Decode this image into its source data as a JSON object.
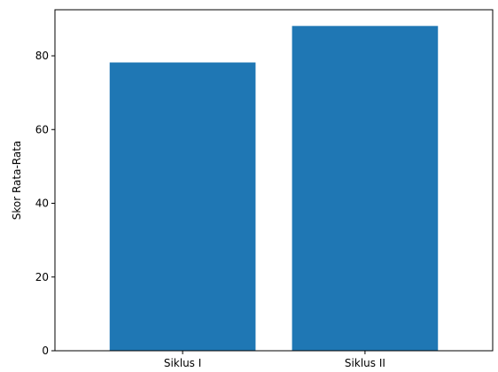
{
  "chart_data": {
    "type": "bar",
    "title": "",
    "xlabel": "",
    "ylabel": "Skor Rata-Rata",
    "categories": [
      "Siklus I",
      "Siklus II"
    ],
    "values": [
      78.2,
      88.1
    ],
    "ylim": [
      0,
      92.5
    ],
    "yticks": [
      0,
      20,
      40,
      60,
      80
    ],
    "grid": false,
    "legend": "none",
    "bar_color": "#1f77b4",
    "axis_color": "#000000"
  }
}
